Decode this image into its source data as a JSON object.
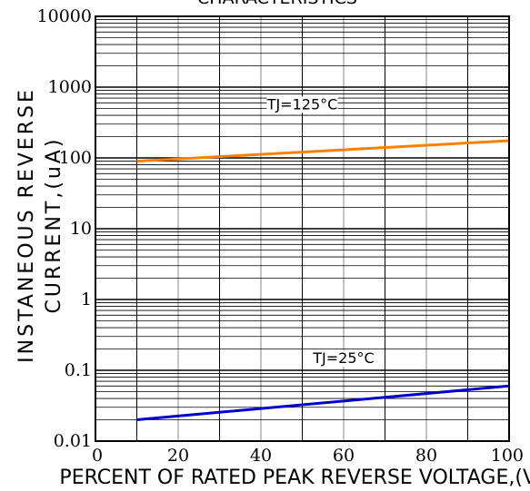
{
  "chart_data": {
    "type": "line",
    "title": "CHARACTERISTICS",
    "xlabel": "PERCENT OF RATED PEAK REVERSE VOLTAGE,(V)",
    "ylabel_line1": "INSTANEOUS REVERSE",
    "ylabel_line2": "CURRENT,(uA)",
    "xlim": [
      0,
      100
    ],
    "ylim": [
      0.01,
      10000
    ],
    "yscale": "log",
    "grid": true,
    "x_ticks": [
      0,
      20,
      40,
      60,
      80,
      100
    ],
    "x_tick_labels": [
      "0",
      "20",
      "40",
      "60",
      "80",
      "100"
    ],
    "y_ticks": [
      0.01,
      0.1,
      1,
      10,
      100,
      1000,
      10000
    ],
    "y_tick_labels": [
      "0.01",
      "0.1",
      "1",
      "10",
      "100",
      "1000",
      "10000"
    ],
    "series": [
      {
        "name": "TJ=125°C",
        "color": "#ff8000",
        "x": [
          10,
          100
        ],
        "values": [
          90,
          175
        ]
      },
      {
        "name": "TJ=25°C",
        "color": "#0000cc",
        "x": [
          10,
          100
        ],
        "values": [
          0.02,
          0.06
        ]
      }
    ],
    "annotations": [
      {
        "text": "TJ=125°C",
        "x": 50,
        "y": 500
      },
      {
        "text": "TJ=25°C",
        "x": 60,
        "y": 0.13
      }
    ]
  }
}
